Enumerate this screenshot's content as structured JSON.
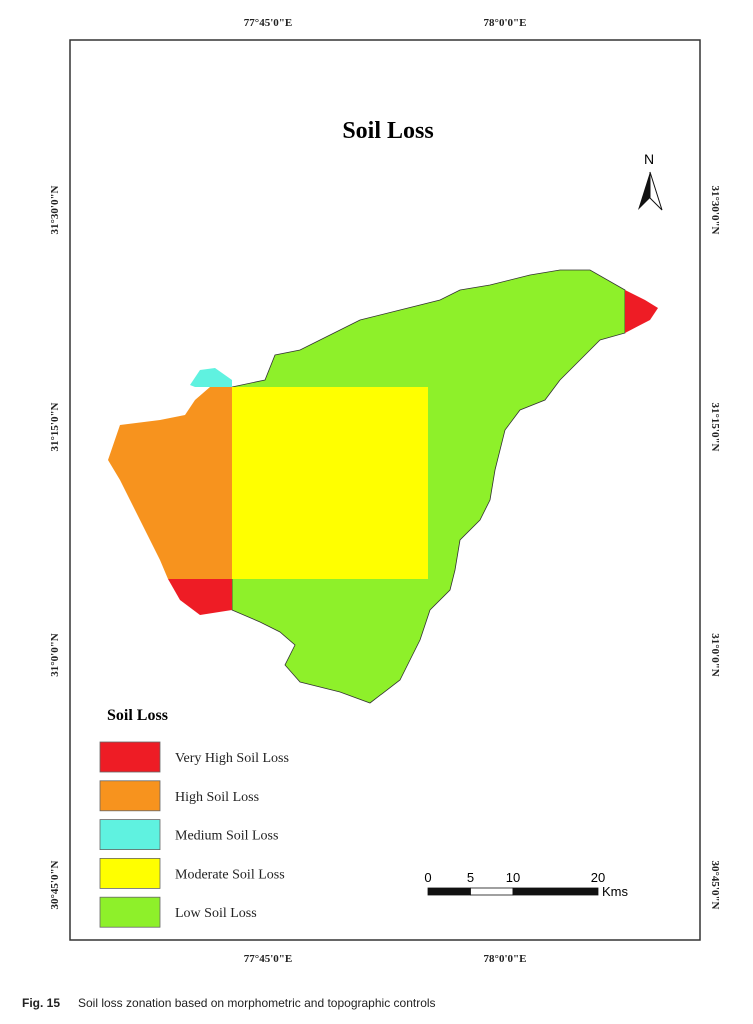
{
  "map": {
    "title": "Soil Loss",
    "north": "N",
    "graticule": {
      "lon": [
        "77°45'0\"E",
        "78°0'0\"E"
      ],
      "lat": [
        "31°30'0\"N",
        "31°15'0\"N",
        "31°0'0\"N",
        "30°45'0\"N"
      ]
    },
    "legend": {
      "title": "Soil Loss",
      "items": [
        {
          "label": "Very High Soil Loss",
          "color": "#ee1c25"
        },
        {
          "label": "High Soil Loss",
          "color": "#f7931e"
        },
        {
          "label": "Medium Soil Loss",
          "color": "#5ff2e0"
        },
        {
          "label": "Moderate Soil Loss",
          "color": "#ffff00"
        },
        {
          "label": "Low Soil Loss",
          "color": "#8ef02a"
        }
      ]
    },
    "scale_bar": {
      "ticks": [
        0,
        5,
        10,
        20
      ],
      "unit": "Kms"
    }
  },
  "caption": {
    "label": "Fig. 15",
    "text": "Soil loss zonation based on morphometric and topographic controls"
  }
}
